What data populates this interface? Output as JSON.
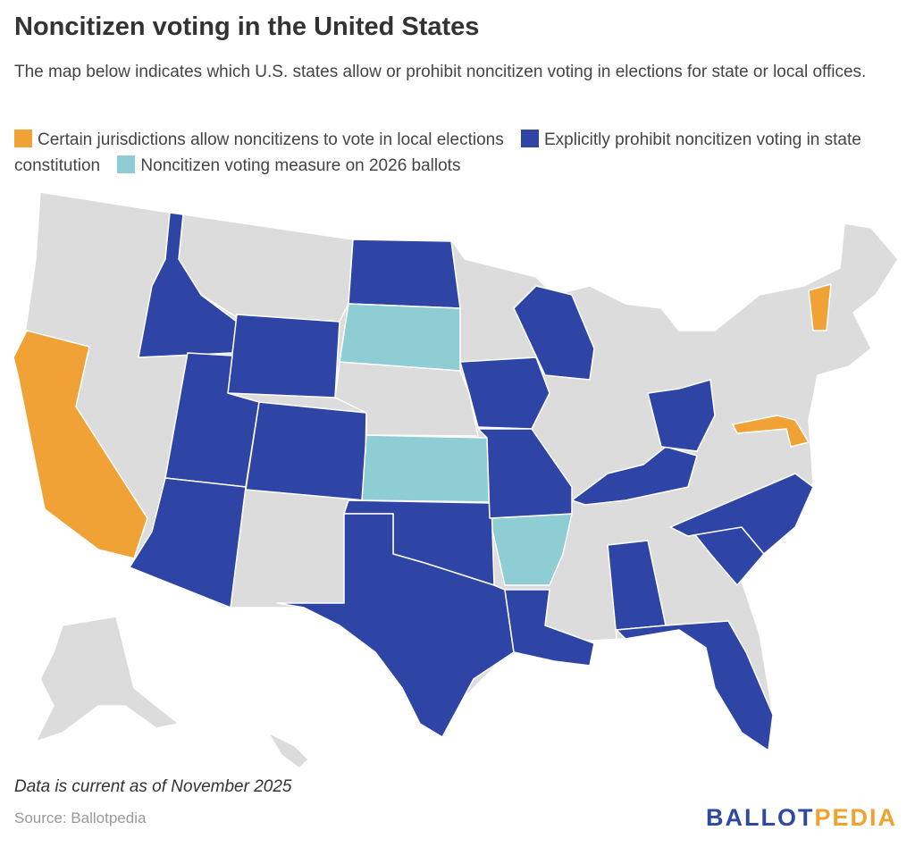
{
  "title": "Noncitizen voting in the United States",
  "subtitle": "The map below indicates which U.S. states allow or prohibit noncitizen voting in elections for state or local offices.",
  "legend": [
    {
      "label": "Certain jurisdictions allow noncitizens to vote in local elections",
      "color": "#f0a236"
    },
    {
      "label": "Explicitly prohibit noncitizen voting in state constitution",
      "color": "#2f45a6"
    },
    {
      "label": "Noncitizen voting measure on 2026 ballots",
      "color": "#8ecdd3"
    }
  ],
  "map": {
    "default_color": "#dcdcdc",
    "states": {
      "allow_local": [
        "California",
        "Vermont",
        "Maryland"
      ],
      "prohibit": [
        "Idaho",
        "Wyoming",
        "Utah",
        "Colorado",
        "Arizona",
        "North Dakota",
        "Oklahoma",
        "Texas",
        "Louisiana",
        "Iowa",
        "Missouri",
        "Wisconsin",
        "Alabama",
        "Florida",
        "South Carolina",
        "North Carolina",
        "Kentucky",
        "Ohio"
      ],
      "measure_2026": [
        "South Dakota",
        "Kansas",
        "Arkansas"
      ]
    }
  },
  "note": "Data is current as of November 2025",
  "source": "Source: Ballotpedia",
  "logo": {
    "part1": "BALLOT",
    "part2": "PEDIA"
  }
}
